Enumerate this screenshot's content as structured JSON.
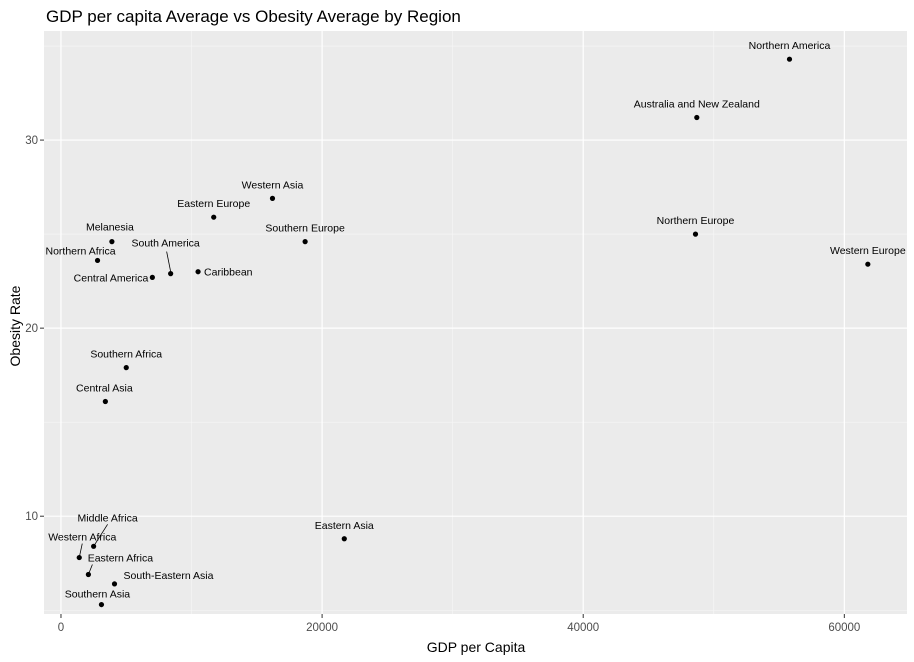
{
  "chart_data": {
    "type": "scatter",
    "title": "GDP per capita Average vs Obesity Average by Region",
    "xlabel": "GDP per Capita",
    "ylabel": "Obesity Rate",
    "xlim": [
      -1300,
      64800
    ],
    "ylim": [
      4.8,
      35.8
    ],
    "x_ticks": [
      0,
      20000,
      40000,
      60000
    ],
    "y_ticks": [
      10,
      20,
      30
    ],
    "x_tick_labels": [
      "0",
      "20000",
      "40000",
      "60000"
    ],
    "y_tick_labels": [
      "10",
      "20",
      "30"
    ],
    "grid": true,
    "background": "#ebebeb",
    "point_color": "#000000",
    "points": [
      {
        "label": "Northern America",
        "x": 55800,
        "y": 34.3
      },
      {
        "label": "Australia and New Zealand",
        "x": 48700,
        "y": 31.2
      },
      {
        "label": "Northern Europe",
        "x": 48600,
        "y": 25.0
      },
      {
        "label": "Western Europe",
        "x": 61800,
        "y": 23.4
      },
      {
        "label": "Western Asia",
        "x": 16200,
        "y": 26.9
      },
      {
        "label": "Eastern Europe",
        "x": 11700,
        "y": 25.9
      },
      {
        "label": "Southern Europe",
        "x": 18700,
        "y": 24.6
      },
      {
        "label": "Melanesia",
        "x": 3900,
        "y": 24.6
      },
      {
        "label": "Northern Africa",
        "x": 2800,
        "y": 23.6
      },
      {
        "label": "South America",
        "x": 8400,
        "y": 22.9
      },
      {
        "label": "Caribbean",
        "x": 10500,
        "y": 23.0
      },
      {
        "label": "Central America",
        "x": 7000,
        "y": 22.7
      },
      {
        "label": "Southern Africa",
        "x": 5000,
        "y": 17.9
      },
      {
        "label": "Central Asia",
        "x": 3400,
        "y": 16.1
      },
      {
        "label": "Eastern Asia",
        "x": 21700,
        "y": 8.8
      },
      {
        "label": "Middle Africa",
        "x": 2500,
        "y": 8.4
      },
      {
        "label": "Western Africa",
        "x": 1400,
        "y": 7.8
      },
      {
        "label": "Eastern Africa",
        "x": 2100,
        "y": 6.9
      },
      {
        "label": "South-Eastern Asia",
        "x": 4100,
        "y": 6.4
      },
      {
        "label": "Southern Asia",
        "x": 3100,
        "y": 5.3
      }
    ]
  }
}
